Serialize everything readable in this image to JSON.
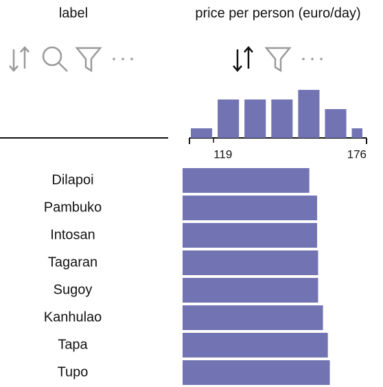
{
  "columns": [
    {
      "header": "label"
    },
    {
      "header": "price per person (euro/day)"
    }
  ],
  "histogram": {
    "bins": [
      110,
      120,
      130,
      140,
      150,
      160,
      170,
      180
    ],
    "counts": [
      1,
      4,
      4,
      4,
      5,
      3,
      1
    ],
    "xlim": [
      110,
      176
    ],
    "xticks": [
      119,
      176
    ],
    "color": "#7273b3"
  },
  "rows": [
    {
      "label": "Dilapoi",
      "value": 130
    },
    {
      "label": "Pambuko",
      "value": 138
    },
    {
      "label": "Intosan",
      "value": 138
    },
    {
      "label": "Tagaran",
      "value": 139
    },
    {
      "label": "Sugoy",
      "value": 139
    },
    {
      "label": "Kanhulao",
      "value": 144
    },
    {
      "label": "Tapa",
      "value": 149
    },
    {
      "label": "Tupo",
      "value": 151
    }
  ],
  "bar_xlim": [
    0,
    176
  ]
}
